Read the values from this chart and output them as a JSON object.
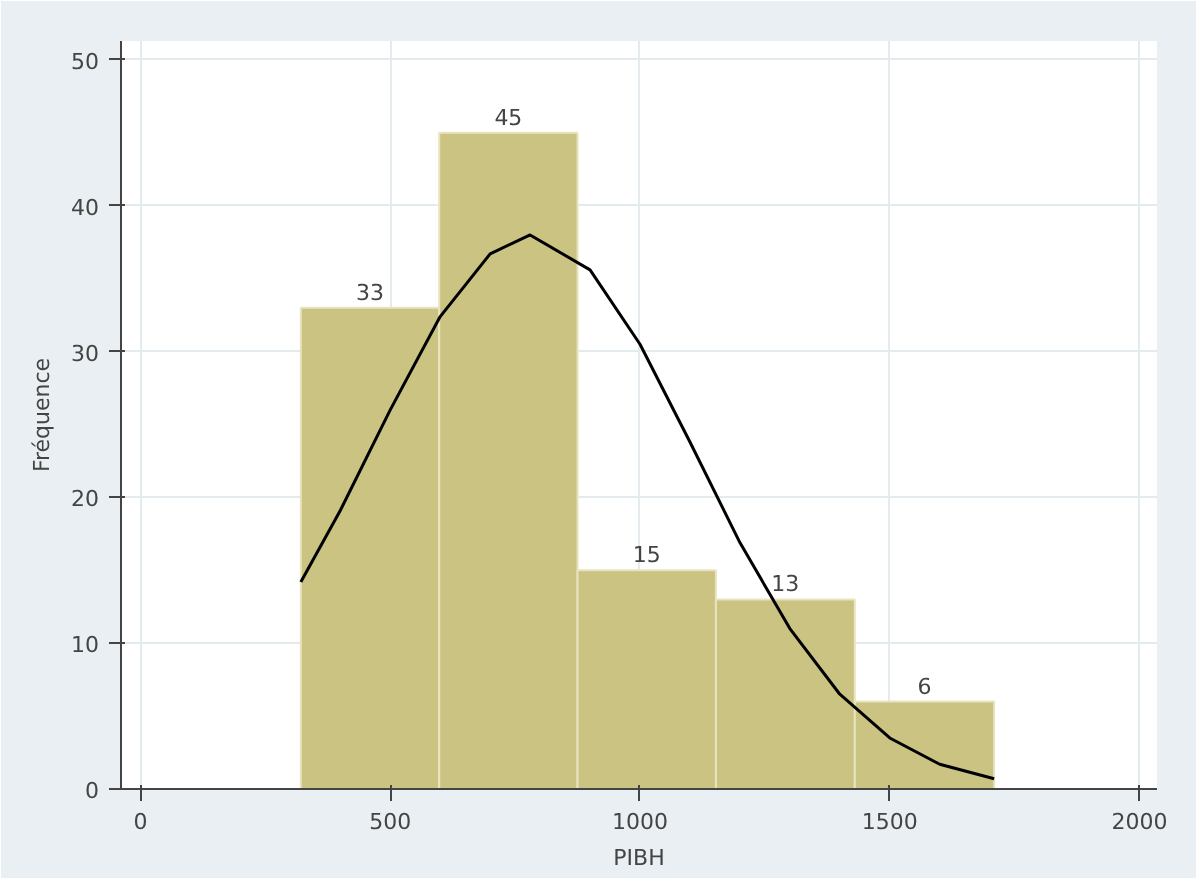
{
  "chart_data": {
    "type": "histogram",
    "xlabel": "PIBH",
    "ylabel": "Fréquence",
    "bins": [
      321,
      598,
      875,
      1152,
      1430,
      1709
    ],
    "values": [
      33,
      45,
      15,
      13,
      6
    ],
    "color": "#cbc382",
    "value_labels": [
      "33",
      "45",
      "15",
      "13",
      "6"
    ],
    "series": [
      {
        "type": "line",
        "color": "#000000",
        "x": [
          321,
          400,
          500,
          600,
          700,
          780,
          900,
          1000,
          1100,
          1200,
          1300,
          1400,
          1500,
          1600,
          1709
        ],
        "values": [
          14.2,
          19.1,
          26.0,
          32.4,
          36.7,
          38.0,
          35.6,
          30.5,
          23.8,
          16.9,
          11.0,
          6.5,
          3.5,
          1.7,
          0.7
        ]
      }
    ],
    "xlim": [
      -39,
      2035
    ],
    "ylim": [
      0,
      51.3
    ],
    "xticks": [
      0,
      500,
      1000,
      1500,
      2000
    ],
    "yticks": [
      0,
      10,
      20,
      30,
      40,
      50
    ],
    "grid": true
  }
}
